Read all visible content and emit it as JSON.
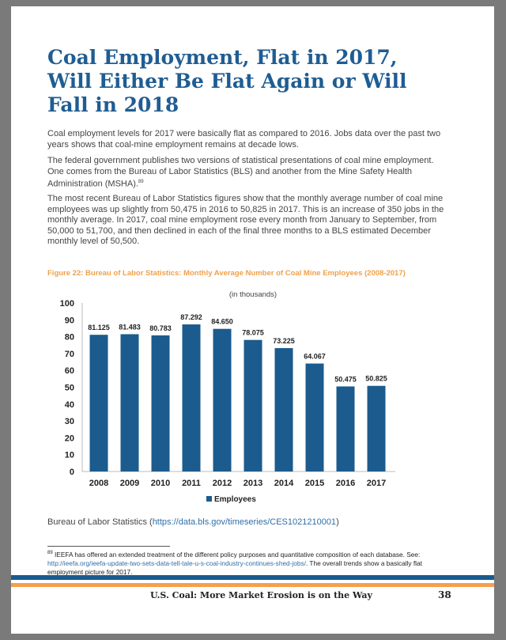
{
  "title": "Coal Employment, Flat in 2017, Will Either Be Flat Again or Will Fall in 2018",
  "paragraphs": [
    "Coal employment levels for 2017 were basically flat as compared to 2016. Jobs data over the past two years shows that coal-mine employment remains at decade lows.",
    "The federal government publishes two versions of statistical presentations of coal mine employment.  One comes from the Bureau of Labor Statistics (BLS) and another from the Mine Safety Health Administration (MSHA).",
    "The most recent Bureau of Labor Statistics figures show that the monthly average number of coal mine employees was up slightly from 50,475 in 2016 to 50,825 in 2017. This is an increase of 350 jobs in the monthly average. In 2017, coal mine employment rose every month from January to September, from 50,000 to 51,700, and then declined in each of the final three months to a BLS estimated December monthly level of 50,500."
  ],
  "footnote_ref": "89",
  "figure_caption": "Figure 22: Bureau of Labor Statistics: Monthly Average Number of Coal Mine Employees (2008-2017)",
  "chart_data": {
    "type": "bar",
    "subtitle": "(in thousands)",
    "categories": [
      "2008",
      "2009",
      "2010",
      "2011",
      "2012",
      "2013",
      "2014",
      "2015",
      "2016",
      "2017"
    ],
    "values": [
      81.125,
      81.483,
      80.783,
      87.292,
      84.65,
      78.075,
      73.225,
      64.067,
      50.475,
      50.825
    ],
    "value_labels": [
      "81.125",
      "81.483",
      "80.783",
      "87.292",
      "84.650",
      "78.075",
      "73.225",
      "64.067",
      "50.475",
      "50.825"
    ],
    "yticks": [
      "0",
      "10",
      "20",
      "30",
      "40",
      "50",
      "60",
      "70",
      "80",
      "90",
      "100"
    ],
    "ylim": [
      0,
      100
    ],
    "legend": "Employees",
    "legend_position": "bottom",
    "color": "#1b5b8e"
  },
  "source": {
    "label": "Bureau of Labor Statistics (",
    "link": "https://data.bls.gov/timeseries/CES1021210001",
    "close": ")"
  },
  "footnote": {
    "num": "89",
    "text": "IEEFA has offered an extended treatment of the different policy purposes and quantitative composition of each database. See: ",
    "link": "http://ieefa.org/ieefa-update-two-sets-data-tell-tale-u-s-coal-industry-continues-shed-jobs/",
    "tail": ". The overall trends show a basically flat employment picture for 2017."
  },
  "footer": {
    "title": "U.S. Coal: More Market Erosion is on the Way",
    "page": "38"
  }
}
